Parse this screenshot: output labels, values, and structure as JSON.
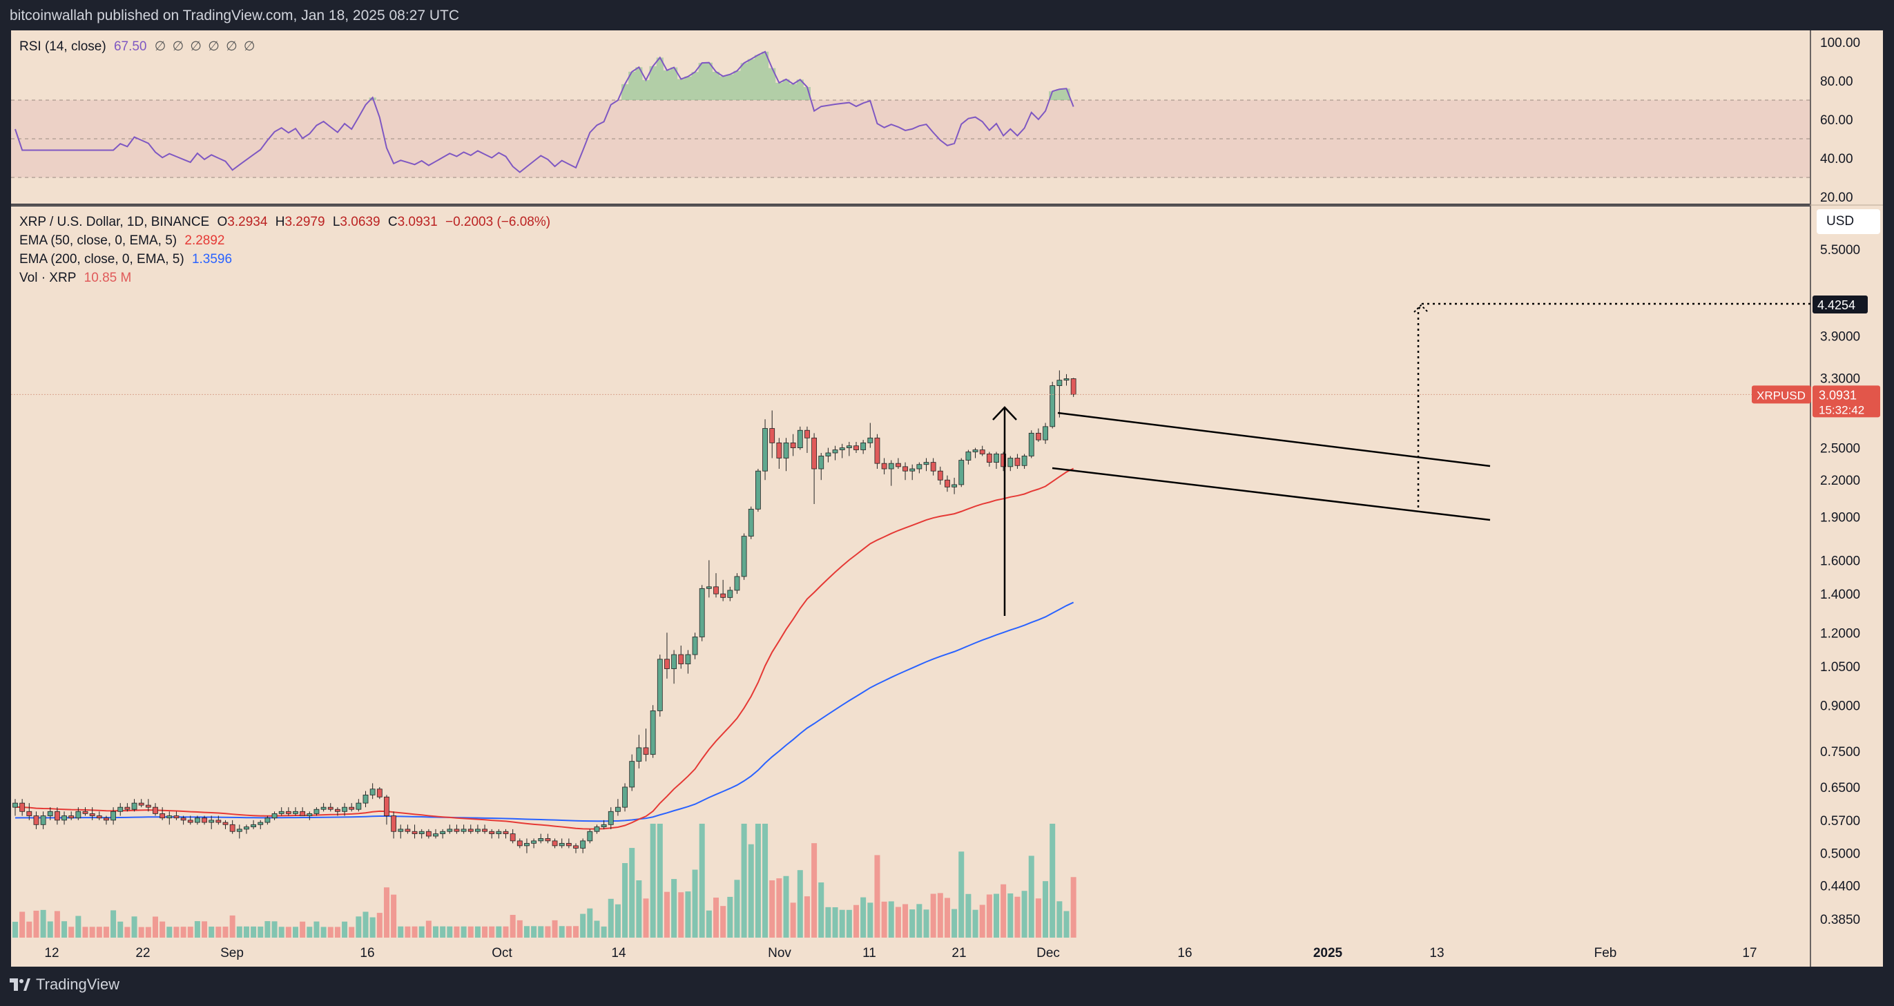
{
  "header": {
    "published": "bitcoinwallah published on TradingView.com, Jan 18, 2025 08:27 UTC"
  },
  "footer": {
    "brand": "TradingView"
  },
  "rsi_legend": {
    "name": "RSI (14, close)",
    "value": "67.50",
    "glyphs": "∅ ∅ ∅ ∅ ∅ ∅"
  },
  "main_legend": {
    "symbol": "XRP / U.S. Dollar, 1D, BINANCE",
    "o_label": "O",
    "o": "3.2934",
    "h_label": "H",
    "h": "3.2979",
    "l_label": "L",
    "l": "3.0639",
    "c_label": "C",
    "c": "3.0931",
    "change": "−0.2003 (−6.08%)",
    "ema50_label": "EMA (50, close, 0, EMA, 5)",
    "ema50_value": "2.2892",
    "ema200_label": "EMA (200, close, 0, EMA, 5)",
    "ema200_value": "1.3596",
    "vol_label": "Vol · XRP",
    "vol_value": "10.85 M"
  },
  "currency_button": "USD",
  "price_tag": {
    "symbol": "XRPUSD",
    "price": "3.0931",
    "countdown": "15:32:42"
  },
  "target_tag": "4.4254",
  "colors": {
    "background": "#f2e0cf",
    "up": "#5fa88f",
    "down": "#e05a5a",
    "ema50": "#e53935",
    "ema200": "#2962ff",
    "rsi": "#7e57c2",
    "vol_up": "#82c4b0",
    "vol_down": "#f09a93"
  },
  "chart_data": {
    "type": "candlestick",
    "rsi_axis": {
      "ticks": [
        100,
        80,
        60,
        40,
        20
      ],
      "tick_labels": [
        "100.00",
        "80.00",
        "60.00",
        "40.00",
        "20.00"
      ],
      "band": [
        30,
        70
      ]
    },
    "price_axis": {
      "scale": "log",
      "ticks": [
        5.5,
        3.9,
        3.3,
        2.5,
        2.2,
        1.9,
        1.6,
        1.4,
        1.2,
        1.05,
        0.9,
        0.75,
        0.65,
        0.57,
        0.5,
        0.44,
        0.385
      ],
      "tick_labels": [
        "5.5000",
        "3.9000",
        "3.3000",
        "2.5000",
        "2.2000",
        "1.9000",
        "1.6000",
        "1.4000",
        "1.2000",
        "1.0500",
        "0.9000",
        "0.7500",
        "0.6500",
        "0.5700",
        "0.5000",
        "0.4400",
        "0.3850"
      ]
    },
    "time_axis": {
      "labels": [
        "12",
        "22",
        "Sep",
        "16",
        "Oct",
        "14",
        "Nov",
        "11",
        "21",
        "Dec",
        "16",
        "2025",
        "13",
        "Feb",
        "17"
      ]
    },
    "last_date": "2025-01-18",
    "series": [
      {
        "name": "XRP / U.S. Dollar",
        "note": "daily OHLC, oldest first",
        "ohlc": [
          [
            0.6,
            0.62,
            0.58,
            0.61
          ],
          [
            0.61,
            0.62,
            0.58,
            0.59
          ],
          [
            0.59,
            0.61,
            0.57,
            0.58
          ],
          [
            0.58,
            0.59,
            0.55,
            0.56
          ],
          [
            0.56,
            0.59,
            0.55,
            0.58
          ],
          [
            0.58,
            0.6,
            0.57,
            0.59
          ],
          [
            0.59,
            0.6,
            0.56,
            0.57
          ],
          [
            0.57,
            0.59,
            0.56,
            0.58
          ],
          [
            0.58,
            0.59,
            0.57,
            0.575
          ],
          [
            0.575,
            0.6,
            0.57,
            0.59
          ],
          [
            0.59,
            0.6,
            0.58,
            0.585
          ],
          [
            0.585,
            0.6,
            0.57,
            0.58
          ],
          [
            0.58,
            0.59,
            0.57,
            0.575
          ],
          [
            0.575,
            0.58,
            0.56,
            0.57
          ],
          [
            0.57,
            0.6,
            0.56,
            0.59
          ],
          [
            0.59,
            0.61,
            0.58,
            0.6
          ],
          [
            0.6,
            0.61,
            0.59,
            0.595
          ],
          [
            0.595,
            0.62,
            0.59,
            0.61
          ],
          [
            0.61,
            0.62,
            0.6,
            0.605
          ],
          [
            0.605,
            0.62,
            0.59,
            0.6
          ],
          [
            0.6,
            0.61,
            0.58,
            0.585
          ],
          [
            0.585,
            0.6,
            0.57,
            0.575
          ],
          [
            0.575,
            0.59,
            0.56,
            0.58
          ],
          [
            0.58,
            0.59,
            0.57,
            0.575
          ],
          [
            0.575,
            0.58,
            0.56,
            0.57
          ],
          [
            0.57,
            0.58,
            0.56,
            0.565
          ],
          [
            0.565,
            0.58,
            0.56,
            0.575
          ],
          [
            0.575,
            0.58,
            0.56,
            0.565
          ],
          [
            0.565,
            0.58,
            0.55,
            0.57
          ],
          [
            0.57,
            0.58,
            0.56,
            0.565
          ],
          [
            0.565,
            0.57,
            0.55,
            0.56
          ],
          [
            0.56,
            0.57,
            0.54,
            0.545
          ],
          [
            0.545,
            0.56,
            0.53,
            0.55
          ],
          [
            0.55,
            0.56,
            0.54,
            0.555
          ],
          [
            0.555,
            0.57,
            0.55,
            0.56
          ],
          [
            0.56,
            0.57,
            0.55,
            0.565
          ],
          [
            0.565,
            0.58,
            0.56,
            0.575
          ],
          [
            0.575,
            0.59,
            0.57,
            0.585
          ],
          [
            0.585,
            0.6,
            0.58,
            0.59
          ],
          [
            0.59,
            0.6,
            0.58,
            0.585
          ],
          [
            0.585,
            0.6,
            0.58,
            0.59
          ],
          [
            0.59,
            0.6,
            0.58,
            0.58
          ],
          [
            0.58,
            0.59,
            0.57,
            0.585
          ],
          [
            0.585,
            0.6,
            0.58,
            0.595
          ],
          [
            0.595,
            0.61,
            0.59,
            0.6
          ],
          [
            0.6,
            0.61,
            0.59,
            0.595
          ],
          [
            0.595,
            0.6,
            0.58,
            0.59
          ],
          [
            0.59,
            0.61,
            0.58,
            0.6
          ],
          [
            0.6,
            0.61,
            0.59,
            0.595
          ],
          [
            0.595,
            0.62,
            0.59,
            0.61
          ],
          [
            0.61,
            0.64,
            0.6,
            0.63
          ],
          [
            0.63,
            0.66,
            0.62,
            0.645
          ],
          [
            0.645,
            0.65,
            0.62,
            0.625
          ],
          [
            0.625,
            0.63,
            0.56,
            0.58
          ],
          [
            0.58,
            0.59,
            0.53,
            0.545
          ],
          [
            0.545,
            0.56,
            0.53,
            0.55
          ],
          [
            0.55,
            0.56,
            0.54,
            0.545
          ],
          [
            0.545,
            0.56,
            0.53,
            0.54
          ],
          [
            0.54,
            0.55,
            0.53,
            0.545
          ],
          [
            0.545,
            0.55,
            0.53,
            0.535
          ],
          [
            0.535,
            0.55,
            0.53,
            0.54
          ],
          [
            0.54,
            0.55,
            0.53,
            0.545
          ],
          [
            0.545,
            0.56,
            0.54,
            0.55
          ],
          [
            0.55,
            0.56,
            0.54,
            0.545
          ],
          [
            0.545,
            0.56,
            0.54,
            0.55
          ],
          [
            0.55,
            0.56,
            0.54,
            0.545
          ],
          [
            0.545,
            0.56,
            0.54,
            0.55
          ],
          [
            0.55,
            0.56,
            0.54,
            0.545
          ],
          [
            0.545,
            0.55,
            0.53,
            0.54
          ],
          [
            0.54,
            0.55,
            0.53,
            0.545
          ],
          [
            0.545,
            0.55,
            0.53,
            0.54
          ],
          [
            0.54,
            0.55,
            0.52,
            0.525
          ],
          [
            0.525,
            0.53,
            0.51,
            0.515
          ],
          [
            0.515,
            0.53,
            0.5,
            0.52
          ],
          [
            0.52,
            0.53,
            0.51,
            0.525
          ],
          [
            0.525,
            0.54,
            0.52,
            0.53
          ],
          [
            0.53,
            0.54,
            0.52,
            0.525
          ],
          [
            0.525,
            0.53,
            0.51,
            0.515
          ],
          [
            0.515,
            0.53,
            0.51,
            0.52
          ],
          [
            0.52,
            0.53,
            0.51,
            0.515
          ],
          [
            0.515,
            0.52,
            0.5,
            0.51
          ],
          [
            0.51,
            0.53,
            0.5,
            0.525
          ],
          [
            0.525,
            0.55,
            0.52,
            0.545
          ],
          [
            0.545,
            0.56,
            0.54,
            0.555
          ],
          [
            0.555,
            0.57,
            0.55,
            0.56
          ],
          [
            0.56,
            0.6,
            0.55,
            0.59
          ],
          [
            0.59,
            0.62,
            0.58,
            0.6
          ],
          [
            0.6,
            0.66,
            0.59,
            0.65
          ],
          [
            0.65,
            0.74,
            0.64,
            0.72
          ],
          [
            0.72,
            0.8,
            0.7,
            0.76
          ],
          [
            0.76,
            0.82,
            0.72,
            0.74
          ],
          [
            0.74,
            0.9,
            0.73,
            0.88
          ],
          [
            0.88,
            1.1,
            0.86,
            1.08
          ],
          [
            1.08,
            1.2,
            1.0,
            1.04
          ],
          [
            1.04,
            1.12,
            0.98,
            1.1
          ],
          [
            1.1,
            1.14,
            1.04,
            1.06
          ],
          [
            1.06,
            1.12,
            1.02,
            1.1
          ],
          [
            1.1,
            1.2,
            1.08,
            1.18
          ],
          [
            1.18,
            1.45,
            1.16,
            1.43
          ],
          [
            1.43,
            1.6,
            1.38,
            1.44
          ],
          [
            1.44,
            1.52,
            1.38,
            1.4
          ],
          [
            1.4,
            1.48,
            1.36,
            1.38
          ],
          [
            1.38,
            1.44,
            1.36,
            1.42
          ],
          [
            1.42,
            1.52,
            1.4,
            1.5
          ],
          [
            1.5,
            1.78,
            1.48,
            1.76
          ],
          [
            1.76,
            1.98,
            1.74,
            1.96
          ],
          [
            1.96,
            2.3,
            1.94,
            2.28
          ],
          [
            2.28,
            2.8,
            2.2,
            2.7
          ],
          [
            2.7,
            2.9,
            2.4,
            2.55
          ],
          [
            2.55,
            2.6,
            2.3,
            2.4
          ],
          [
            2.4,
            2.6,
            2.28,
            2.55
          ],
          [
            2.55,
            2.64,
            2.42,
            2.5
          ],
          [
            2.5,
            2.72,
            2.48,
            2.68
          ],
          [
            2.68,
            2.72,
            2.45,
            2.6
          ],
          [
            2.6,
            2.65,
            2.0,
            2.3
          ],
          [
            2.3,
            2.45,
            2.2,
            2.42
          ],
          [
            2.42,
            2.5,
            2.36,
            2.45
          ],
          [
            2.45,
            2.52,
            2.38,
            2.48
          ],
          [
            2.48,
            2.54,
            2.4,
            2.5
          ],
          [
            2.5,
            2.56,
            2.42,
            2.52
          ],
          [
            2.52,
            2.56,
            2.45,
            2.48
          ],
          [
            2.48,
            2.58,
            2.44,
            2.55
          ],
          [
            2.55,
            2.76,
            2.5,
            2.6
          ],
          [
            2.6,
            2.64,
            2.3,
            2.35
          ],
          [
            2.35,
            2.4,
            2.25,
            2.3
          ],
          [
            2.3,
            2.38,
            2.15,
            2.35
          ],
          [
            2.35,
            2.4,
            2.3,
            2.32
          ],
          [
            2.32,
            2.36,
            2.2,
            2.28
          ],
          [
            2.28,
            2.34,
            2.2,
            2.3
          ],
          [
            2.3,
            2.36,
            2.26,
            2.34
          ],
          [
            2.34,
            2.4,
            2.28,
            2.36
          ],
          [
            2.36,
            2.4,
            2.24,
            2.28
          ],
          [
            2.28,
            2.32,
            2.16,
            2.2
          ],
          [
            2.2,
            2.24,
            2.1,
            2.14
          ],
          [
            2.14,
            2.22,
            2.08,
            2.16
          ],
          [
            2.16,
            2.4,
            2.14,
            2.38
          ],
          [
            2.38,
            2.48,
            2.34,
            2.46
          ],
          [
            2.46,
            2.5,
            2.4,
            2.48
          ],
          [
            2.48,
            2.52,
            2.42,
            2.44
          ],
          [
            2.44,
            2.46,
            2.32,
            2.36
          ],
          [
            2.36,
            2.46,
            2.3,
            2.44
          ],
          [
            2.44,
            2.46,
            2.28,
            2.32
          ],
          [
            2.32,
            2.42,
            2.28,
            2.4
          ],
          [
            2.4,
            2.44,
            2.3,
            2.33
          ],
          [
            2.33,
            2.44,
            2.3,
            2.42
          ],
          [
            2.42,
            2.68,
            2.4,
            2.65
          ],
          [
            2.65,
            2.7,
            2.56,
            2.58
          ],
          [
            2.58,
            2.76,
            2.54,
            2.72
          ],
          [
            2.72,
            3.25,
            2.7,
            3.2
          ],
          [
            3.2,
            3.4,
            2.82,
            3.27
          ],
          [
            3.27,
            3.35,
            3.2,
            3.29
          ],
          [
            3.29,
            3.3,
            3.06,
            3.09
          ]
        ]
      },
      {
        "name": "EMA (50, close, 0, EMA, 5)",
        "last": 2.2892
      },
      {
        "name": "EMA (200, close, 0, EMA, 5)",
        "last": 1.3596
      },
      {
        "name": "Vol · XRP",
        "last": "10.85 M"
      }
    ],
    "drawings": {
      "pole_arrow": "vertical arrow ~1.3 to ~2.8",
      "channel": "descending channel lines ~2.9→2.3 (upper) and ~2.28→1.87 (lower)",
      "projection": "dotted breakout projection to 4.4254"
    }
  }
}
